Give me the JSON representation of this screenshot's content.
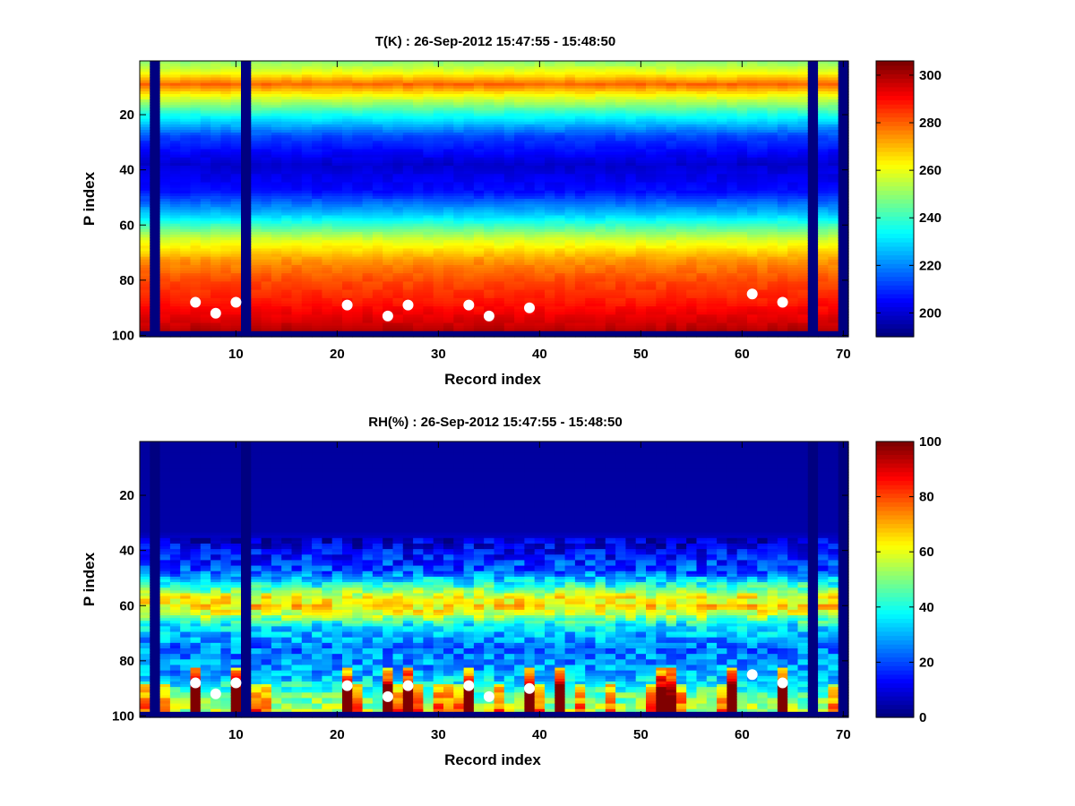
{
  "chart_data": [
    {
      "type": "heatmap",
      "title": "T(K) : 26-Sep-2012 15:47:55 - 15:48:50",
      "xlabel": "Record index",
      "ylabel": "P index",
      "xlim": [
        1,
        70
      ],
      "ylim": [
        1,
        100
      ],
      "y_reversed": true,
      "x_ticks": [
        10,
        20,
        30,
        40,
        50,
        60,
        70
      ],
      "y_ticks": [
        20,
        40,
        60,
        80,
        100
      ],
      "colormap": "jet",
      "colorbar": {
        "range": [
          190,
          306
        ],
        "ticks": [
          200,
          220,
          240,
          260,
          280,
          300
        ]
      },
      "invalid_record_columns": [
        2,
        11,
        67,
        70
      ],
      "invalid_bottom_rows_from": 99,
      "profile_model": {
        "description_levels": [
          {
            "p": 1,
            "value": 250
          },
          {
            "p": 5,
            "value": 262
          },
          {
            "p": 9,
            "value": 280
          },
          {
            "p": 13,
            "value": 262
          },
          {
            "p": 20,
            "value": 236
          },
          {
            "p": 28,
            "value": 212
          },
          {
            "p": 38,
            "value": 199
          },
          {
            "p": 48,
            "value": 206
          },
          {
            "p": 57,
            "value": 230
          },
          {
            "p": 65,
            "value": 257
          },
          {
            "p": 73,
            "value": 275
          },
          {
            "p": 80,
            "value": 283
          },
          {
            "p": 88,
            "value": 289
          },
          {
            "p": 95,
            "value": 296
          },
          {
            "p": 98,
            "value": 300
          }
        ]
      },
      "markers": [
        {
          "record": 6,
          "p": 88
        },
        {
          "record": 8,
          "p": 92
        },
        {
          "record": 10,
          "p": 88
        },
        {
          "record": 21,
          "p": 89
        },
        {
          "record": 25,
          "p": 93
        },
        {
          "record": 27,
          "p": 89
        },
        {
          "record": 33,
          "p": 89
        },
        {
          "record": 35,
          "p": 93
        },
        {
          "record": 39,
          "p": 90
        },
        {
          "record": 61,
          "p": 85
        },
        {
          "record": 64,
          "p": 88
        }
      ],
      "marker_color": "#ffffff"
    },
    {
      "type": "heatmap",
      "title": "RH(%) : 26-Sep-2012 15:47:55 - 15:48:50",
      "xlabel": "Record index",
      "ylabel": "P index",
      "xlim": [
        1,
        70
      ],
      "ylim": [
        1,
        100
      ],
      "y_reversed": true,
      "x_ticks": [
        10,
        20,
        30,
        40,
        50,
        60,
        70
      ],
      "y_ticks": [
        20,
        40,
        60,
        80,
        100
      ],
      "colormap": "jet",
      "colorbar": {
        "range": [
          0,
          100
        ],
        "ticks": [
          0,
          20,
          40,
          60,
          80,
          100
        ]
      },
      "invalid_record_columns": [
        2,
        11,
        67,
        70
      ],
      "invalid_bottom_rows_from": 99,
      "profile_model": {
        "description_levels": [
          {
            "p": 1,
            "value": 3
          },
          {
            "p": 33,
            "value": 4
          },
          {
            "p": 40,
            "value": 12
          },
          {
            "p": 48,
            "value": 22
          },
          {
            "p": 53,
            "value": 42
          },
          {
            "p": 57,
            "value": 62
          },
          {
            "p": 60,
            "value": 66
          },
          {
            "p": 63,
            "value": 58
          },
          {
            "p": 67,
            "value": 36
          },
          {
            "p": 75,
            "value": 24
          },
          {
            "p": 84,
            "value": 28
          },
          {
            "p": 92,
            "value": 45
          },
          {
            "p": 98,
            "value": 55
          }
        ]
      },
      "markers": [
        {
          "record": 6,
          "p": 88
        },
        {
          "record": 8,
          "p": 92
        },
        {
          "record": 10,
          "p": 88
        },
        {
          "record": 21,
          "p": 89
        },
        {
          "record": 25,
          "p": 93
        },
        {
          "record": 27,
          "p": 89
        },
        {
          "record": 33,
          "p": 89
        },
        {
          "record": 35,
          "p": 93
        },
        {
          "record": 39,
          "p": 90
        },
        {
          "record": 61,
          "p": 85
        },
        {
          "record": 64,
          "p": 88
        }
      ],
      "marker_color": "#ffffff"
    }
  ]
}
